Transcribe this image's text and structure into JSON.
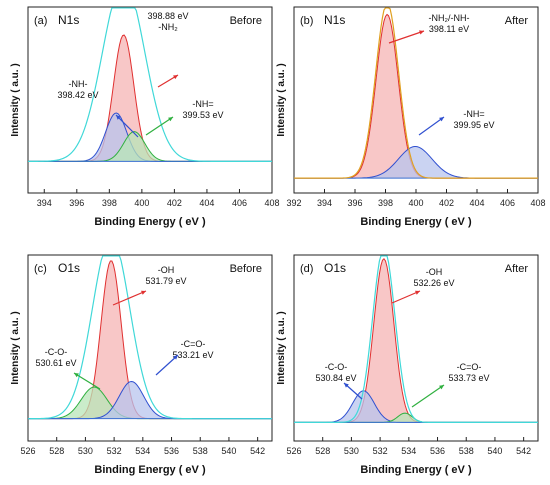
{
  "figure": {
    "panels": [
      {
        "id": "a",
        "label": "(a)",
        "element": "N1s",
        "state": "Before",
        "xlabel": "Binding Energy ( eV )",
        "ylabel": "Intensity ( a.u. )",
        "xlim": [
          393,
          408
        ],
        "ticks": [
          "394",
          "396",
          "398",
          "400",
          "402",
          "404",
          "406",
          "408"
        ],
        "annotations": [
          {
            "text": [
              "398.88 eV",
              "-NH₂"
            ],
            "color": "#e03030"
          },
          {
            "text": [
              "-NH-",
              "398.42 eV"
            ],
            "color": "#3050d0"
          },
          {
            "text": [
              "-NH=",
              "399.53 eV"
            ],
            "color": "#30b040"
          }
        ]
      },
      {
        "id": "b",
        "label": "(b)",
        "element": "N1s",
        "state": "After",
        "xlabel": "Binding Energy ( eV )",
        "ylabel": "Intensity ( a.u. )",
        "xlim": [
          392,
          408
        ],
        "ticks": [
          "392",
          "394",
          "396",
          "398",
          "400",
          "402",
          "404",
          "406",
          "408"
        ],
        "annotations": [
          {
            "text": [
              "-NH₂/-NH-",
              "398.11 eV"
            ],
            "color": "#e03030"
          },
          {
            "text": [
              "-NH=",
              "399.95 eV"
            ],
            "color": "#3050d0"
          }
        ]
      },
      {
        "id": "c",
        "label": "(c)",
        "element": "O1s",
        "state": "Before",
        "xlabel": "Binding Energy ( eV )",
        "ylabel": "Intensity ( a.u. )",
        "xlim": [
          526,
          543
        ],
        "ticks": [
          "526",
          "528",
          "530",
          "532",
          "534",
          "536",
          "538",
          "540",
          "542"
        ],
        "annotations": [
          {
            "text": [
              "-OH",
              "531.79 eV"
            ],
            "color": "#e03030"
          },
          {
            "text": [
              "-C-O-",
              "530.61 eV"
            ],
            "color": "#30b040"
          },
          {
            "text": [
              "-C=O-",
              "533.21 eV"
            ],
            "color": "#3050d0"
          }
        ]
      },
      {
        "id": "d",
        "label": "(d)",
        "element": "O1s",
        "state": "After",
        "xlabel": "Binding Energy ( eV )",
        "ylabel": "Intensity ( a.u. )",
        "xlim": [
          526,
          543
        ],
        "ticks": [
          "526",
          "528",
          "530",
          "532",
          "534",
          "536",
          "538",
          "540",
          "542"
        ],
        "annotations": [
          {
            "text": [
              "-OH",
              "532.26 eV"
            ],
            "color": "#e03030"
          },
          {
            "text": [
              "-C-O-",
              "530.84 eV"
            ],
            "color": "#3050d0"
          },
          {
            "text": [
              "-C=O-",
              "533.73 eV"
            ],
            "color": "#30b040"
          }
        ]
      }
    ]
  },
  "chart_data": [
    {
      "type": "area",
      "panel": "a",
      "xlabel": "Binding Energy ( eV )",
      "ylabel": "Intensity ( a.u. )",
      "xlim": [
        393,
        408
      ],
      "ylim": [
        0,
        1
      ],
      "grid": false,
      "legend": "none",
      "baseline": 0.17,
      "envelope": {
        "color": "#40d8d8",
        "center": 398.88,
        "amplitude": 0.97,
        "width": 2.6
      },
      "series": [
        {
          "center": 398.88,
          "amplitude": 0.68,
          "width": 1.25,
          "color": "#e03030",
          "fill": "#f6b4b4"
        },
        {
          "center": 398.42,
          "amplitude": 0.26,
          "width": 1.3,
          "color": "#3050d0",
          "fill": "#b8c4ee"
        },
        {
          "center": 399.53,
          "amplitude": 0.16,
          "width": 1.3,
          "color": "#30b040",
          "fill": "#b8e6b8"
        }
      ]
    },
    {
      "type": "area",
      "panel": "b",
      "xlabel": "Binding Energy ( eV )",
      "ylabel": "Intensity ( a.u. )",
      "xlim": [
        392,
        408
      ],
      "ylim": [
        0,
        1
      ],
      "grid": false,
      "legend": "none",
      "baseline": 0.08,
      "envelope": {
        "color": "#e0a020",
        "center": 398.11,
        "amplitude": 0.94,
        "width": 1.5
      },
      "series": [
        {
          "center": 398.11,
          "amplitude": 0.88,
          "width": 1.45,
          "color": "#e03030",
          "fill": "#f6b4b4"
        },
        {
          "center": 399.95,
          "amplitude": 0.17,
          "width": 2.2,
          "color": "#3050d0",
          "fill": "#b8c4ee"
        }
      ]
    },
    {
      "type": "area",
      "panel": "c",
      "xlabel": "Binding Energy ( eV )",
      "ylabel": "Intensity ( a.u. )",
      "xlim": [
        526,
        543
      ],
      "ylim": [
        0,
        1
      ],
      "grid": false,
      "legend": "none",
      "baseline": 0.12,
      "envelope": {
        "color": "#40d8d8",
        "center": 531.79,
        "amplitude": 0.98,
        "width": 2.6
      },
      "series": [
        {
          "center": 531.79,
          "amplitude": 0.85,
          "width": 1.4,
          "color": "#e03030",
          "fill": "#f6b4b4"
        },
        {
          "center": 530.61,
          "amplitude": 0.17,
          "width": 1.8,
          "color": "#30b040",
          "fill": "#b8e6b8"
        },
        {
          "center": 533.21,
          "amplitude": 0.2,
          "width": 1.7,
          "color": "#3050d0",
          "fill": "#b8c4ee"
        }
      ]
    },
    {
      "type": "area",
      "panel": "d",
      "xlabel": "Binding Energy ( eV )",
      "ylabel": "Intensity ( a.u. )",
      "xlim": [
        526,
        543
      ],
      "ylim": [
        0,
        1
      ],
      "grid": false,
      "legend": "none",
      "baseline": 0.1,
      "envelope": {
        "color": "#40d8d8",
        "center": 532.26,
        "amplitude": 0.94,
        "width": 1.55
      },
      "series": [
        {
          "center": 532.26,
          "amplitude": 0.88,
          "width": 1.4,
          "color": "#e03030",
          "fill": "#f6b4b4"
        },
        {
          "center": 530.84,
          "amplitude": 0.17,
          "width": 1.5,
          "color": "#3050d0",
          "fill": "#b8c4ee"
        },
        {
          "center": 533.73,
          "amplitude": 0.05,
          "width": 1.0,
          "color": "#30b040",
          "fill": "#b8e6b8"
        }
      ]
    }
  ]
}
